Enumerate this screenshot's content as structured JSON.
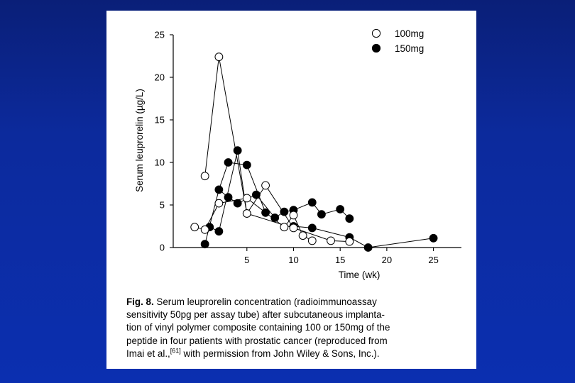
{
  "chart_data": {
    "type": "line",
    "title": "",
    "xlabel": "Time (wk)",
    "ylabel": "Serum leuprorelin (µg/L)",
    "xlim": [
      -2.9,
      28
    ],
    "ylim": [
      0,
      25
    ],
    "x_ticks": [
      5,
      10,
      15,
      20,
      25
    ],
    "y_ticks": [
      0,
      5,
      10,
      15,
      20,
      25
    ],
    "legend_position": "top-right",
    "grid": false,
    "series": [
      {
        "name": "100mg",
        "marker": "open-circle",
        "lines": [
          [
            [
              0.5,
              8.4
            ],
            [
              2,
              22.4
            ],
            [
              5,
              4
            ],
            [
              7,
              7.3
            ],
            [
              10,
              2.3
            ]
          ],
          [
            [
              -0.6,
              2.4
            ],
            [
              0.5,
              2.1
            ],
            [
              2,
              5.2
            ],
            [
              5,
              5.8
            ],
            [
              9,
              2.4
            ],
            [
              10,
              3.8
            ],
            [
              11,
              1.4
            ],
            [
              12,
              0.8
            ]
          ],
          [
            [
              5,
              4
            ],
            [
              10,
              2.3
            ],
            [
              14,
              0.8
            ],
            [
              16,
              0.7
            ]
          ]
        ]
      },
      {
        "name": "150mg",
        "marker": "filled-circle",
        "lines": [
          [
            [
              0.5,
              0.4
            ],
            [
              2,
              6.8
            ],
            [
              3,
              10
            ],
            [
              5,
              9.7
            ],
            [
              7,
              4.1
            ]
          ],
          [
            [
              1,
              2.4
            ],
            [
              2,
              1.9
            ],
            [
              4,
              11.4
            ],
            [
              5,
              4
            ]
          ],
          [
            [
              2,
              6.8
            ],
            [
              3,
              5.9
            ],
            [
              4,
              5.2
            ],
            [
              6,
              6.2
            ],
            [
              8,
              3.5
            ],
            [
              9,
              4.2
            ],
            [
              10,
              4.4
            ],
            [
              12,
              5.3
            ],
            [
              13,
              3.9
            ],
            [
              15,
              4.5
            ],
            [
              16,
              3.4
            ]
          ],
          [
            [
              10,
              2.5
            ],
            [
              12,
              2.3
            ],
            [
              16,
              1.2
            ],
            [
              18,
              0
            ],
            [
              25,
              1.1
            ]
          ]
        ]
      }
    ]
  },
  "caption": {
    "fig_label": "Fig. 8.",
    "line1": " Serum leuprorelin concentration (radioimmunoassay",
    "line2": "sensitivity 50pg per assay tube) after subcutaneous implanta-",
    "line3": "tion of vinyl polymer composite containing 100 or 150mg of the",
    "line4": "peptide in four patients with prostatic cancer (reproduced from",
    "line5_pre": "Imai et al.,",
    "line5_ref": "[61]",
    "line5_post": " with permission from John Wiley & Sons, Inc.)."
  }
}
